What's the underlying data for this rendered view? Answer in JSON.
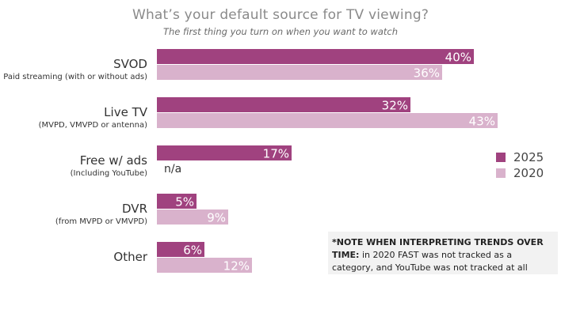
{
  "title": "What’s your default source for TV viewing?",
  "subtitle": "The first thing you turn on when you want to watch",
  "colors": {
    "series_2025": "#a0427f",
    "series_2020": "#d9b2cc"
  },
  "na_label": "n/a",
  "note": {
    "bold": "*NOTE WHEN INTERPRETING TRENDS OVER TIME:",
    "text": " in 2020 FAST was not tracked as a category, and YouTube was not tracked at all"
  },
  "chart_data": {
    "type": "bar",
    "orientation": "horizontal",
    "categories": [
      "SVOD",
      "Live TV",
      "Free w/ ads",
      "DVR",
      "Other"
    ],
    "category_sublabels": [
      "Paid streaming (with or without ads)",
      "(MVPD, VMVPD or antenna)",
      "(Including YouTube)",
      "(from MVPD or VMVPD)",
      ""
    ],
    "series": [
      {
        "name": "2025",
        "values": [
          40,
          32,
          17,
          5,
          6
        ],
        "labels": [
          "40%",
          "32%",
          "17%",
          "5%",
          "6%"
        ]
      },
      {
        "name": "2020",
        "values": [
          36,
          43,
          null,
          9,
          12
        ],
        "labels": [
          "36%",
          "43%",
          "",
          "9%",
          "12%"
        ]
      }
    ],
    "xlim": [
      0,
      50
    ],
    "grid": false,
    "legend_position": "right"
  }
}
